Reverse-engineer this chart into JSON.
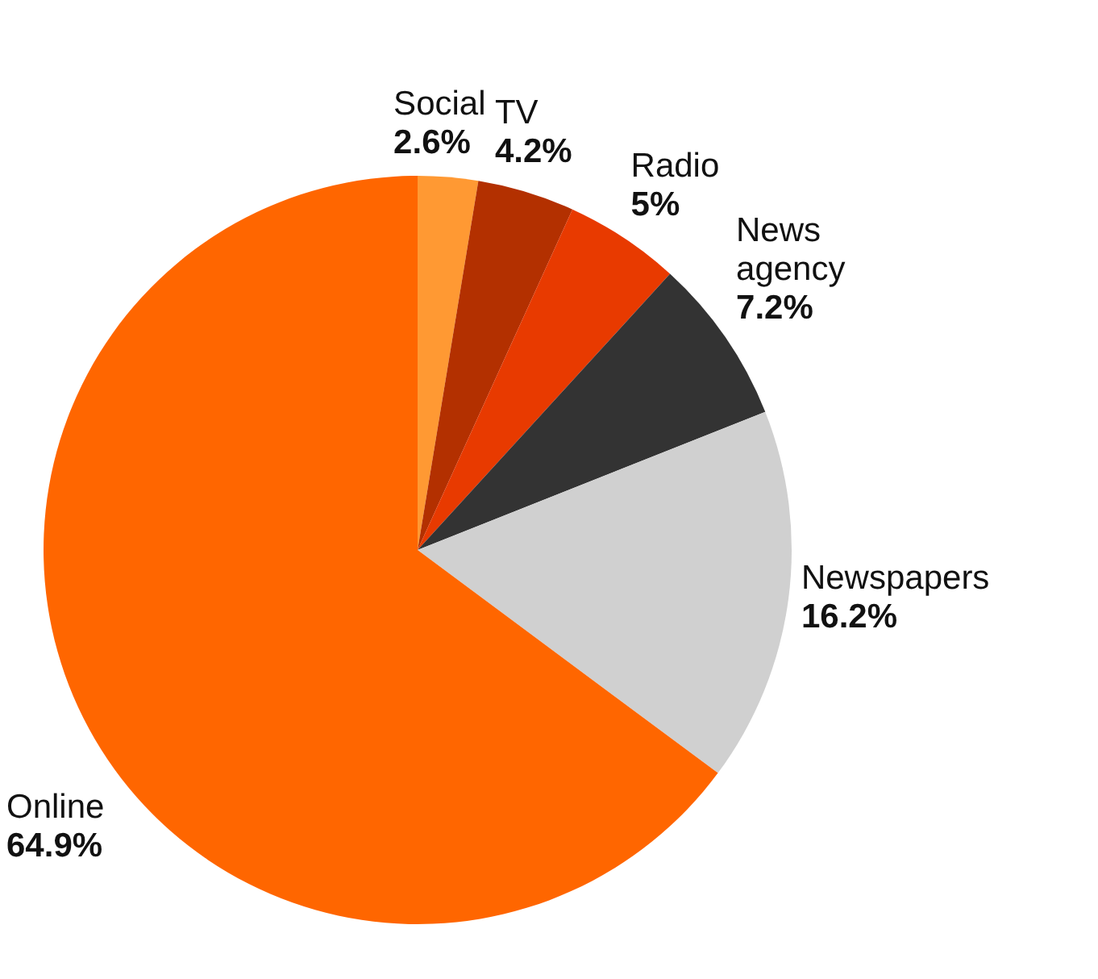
{
  "chart_data": {
    "type": "pie",
    "categories": [
      "Social",
      "TV",
      "Radio",
      "News agency",
      "Newspapers",
      "Online"
    ],
    "values": [
      2.6,
      4.2,
      5,
      7.2,
      16.2,
      64.9
    ],
    "value_labels": [
      "2.6%",
      "4.2%",
      "5%",
      "7.2%",
      "16.2%",
      "64.9%"
    ],
    "colors": [
      "#ff9933",
      "#b33000",
      "#e83a00",
      "#333333",
      "#d0d0d0",
      "#ff6600"
    ]
  }
}
